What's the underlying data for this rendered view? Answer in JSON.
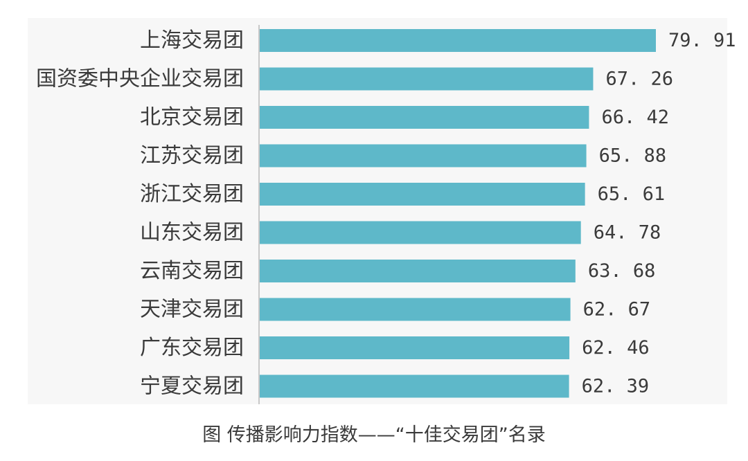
{
  "caption": "图 传播影响力指数——“十佳交易团”名录",
  "colors": {
    "bar": "#5eb8c9",
    "axis": "#c8c8c8",
    "text": "#3a3a3a",
    "panel": "#f7f7f7"
  },
  "chart_data": {
    "type": "bar",
    "orientation": "horizontal",
    "title": "",
    "xlabel": "",
    "ylabel": "",
    "xlim": [
      0,
      80
    ],
    "grid": false,
    "legend": "none",
    "categories": [
      "上海交易团",
      "国资委中央企业交易团",
      "北京交易团",
      "江苏交易团",
      "浙江交易团",
      "山东交易团",
      "云南交易团",
      "天津交易团",
      "广东交易团",
      "宁夏交易团"
    ],
    "values": [
      79.91,
      67.26,
      66.42,
      65.88,
      65.61,
      64.78,
      63.68,
      62.67,
      62.46,
      62.39
    ],
    "value_labels": [
      "79. 91",
      "67. 26",
      "66. 42",
      "65. 88",
      "65. 61",
      "64. 78",
      "63. 68",
      "62. 67",
      "62. 46",
      "62. 39"
    ]
  }
}
